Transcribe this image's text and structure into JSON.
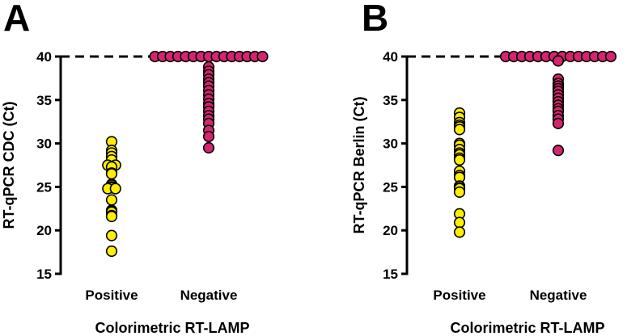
{
  "chart_data": [
    {
      "type": "scatter",
      "panel_label": "A",
      "xlabel": "Colorimetric RT-LAMP",
      "ylabel": "RT-qPCR CDC (Ct)",
      "ylim": [
        15,
        40
      ],
      "yticks": [
        "15",
        "20",
        "25",
        "30",
        "35",
        "40"
      ],
      "reference_line": 40,
      "categories": [
        "Positive",
        "Negative"
      ],
      "colors": {
        "positive": "#ffee00",
        "negative": "#d6246e"
      },
      "series": [
        {
          "name": "Positive",
          "values": [
            30.2,
            29.2,
            28.9,
            28.5,
            28.1,
            27.5,
            27.5,
            27.3,
            26.6,
            26.5,
            25.3,
            25.2,
            25.0,
            24.9,
            24.8,
            24.8,
            23.5,
            22.3,
            22.2,
            22.1,
            21.7,
            21.6,
            19.4,
            17.6
          ]
        },
        {
          "name": "Negative",
          "values": [
            40,
            40,
            40,
            40,
            40,
            40,
            40,
            40,
            40,
            40,
            40,
            40,
            40,
            40,
            40,
            38.8,
            38.3,
            37.9,
            37.4,
            37.0,
            36.6,
            36.1,
            35.6,
            35.1,
            34.6,
            34.2,
            33.7,
            33.2,
            32.8,
            32.3,
            31.5,
            30.8,
            29.5
          ]
        }
      ]
    },
    {
      "type": "scatter",
      "panel_label": "B",
      "xlabel": "Colorimetric RT-LAMP",
      "ylabel": "RT-qPCR Berlin (Ct)",
      "ylim": [
        15,
        40
      ],
      "yticks": [
        "15",
        "20",
        "25",
        "30",
        "35",
        "40"
      ],
      "reference_line": 40,
      "categories": [
        "Positive",
        "Negative"
      ],
      "colors": {
        "positive": "#ffee00",
        "negative": "#d6246e"
      },
      "series": [
        {
          "name": "Positive",
          "values": [
            33.5,
            33.0,
            32.4,
            32.1,
            31.9,
            31.6,
            30.0,
            29.8,
            29.3,
            28.9,
            28.7,
            28.3,
            28.1,
            26.8,
            26.3,
            26.1,
            25.1,
            24.9,
            24.8,
            24.4,
            21.9,
            20.9,
            19.8
          ]
        },
        {
          "name": "Negative",
          "values": [
            40,
            40,
            40,
            40,
            40,
            40,
            40,
            40,
            40,
            40,
            40,
            40,
            40,
            40,
            39.5,
            37.4,
            36.9,
            36.6,
            36.3,
            36.0,
            35.6,
            35.2,
            34.8,
            34.4,
            34.0,
            33.7,
            33.2,
            32.8,
            32.3,
            29.2
          ]
        }
      ]
    }
  ]
}
